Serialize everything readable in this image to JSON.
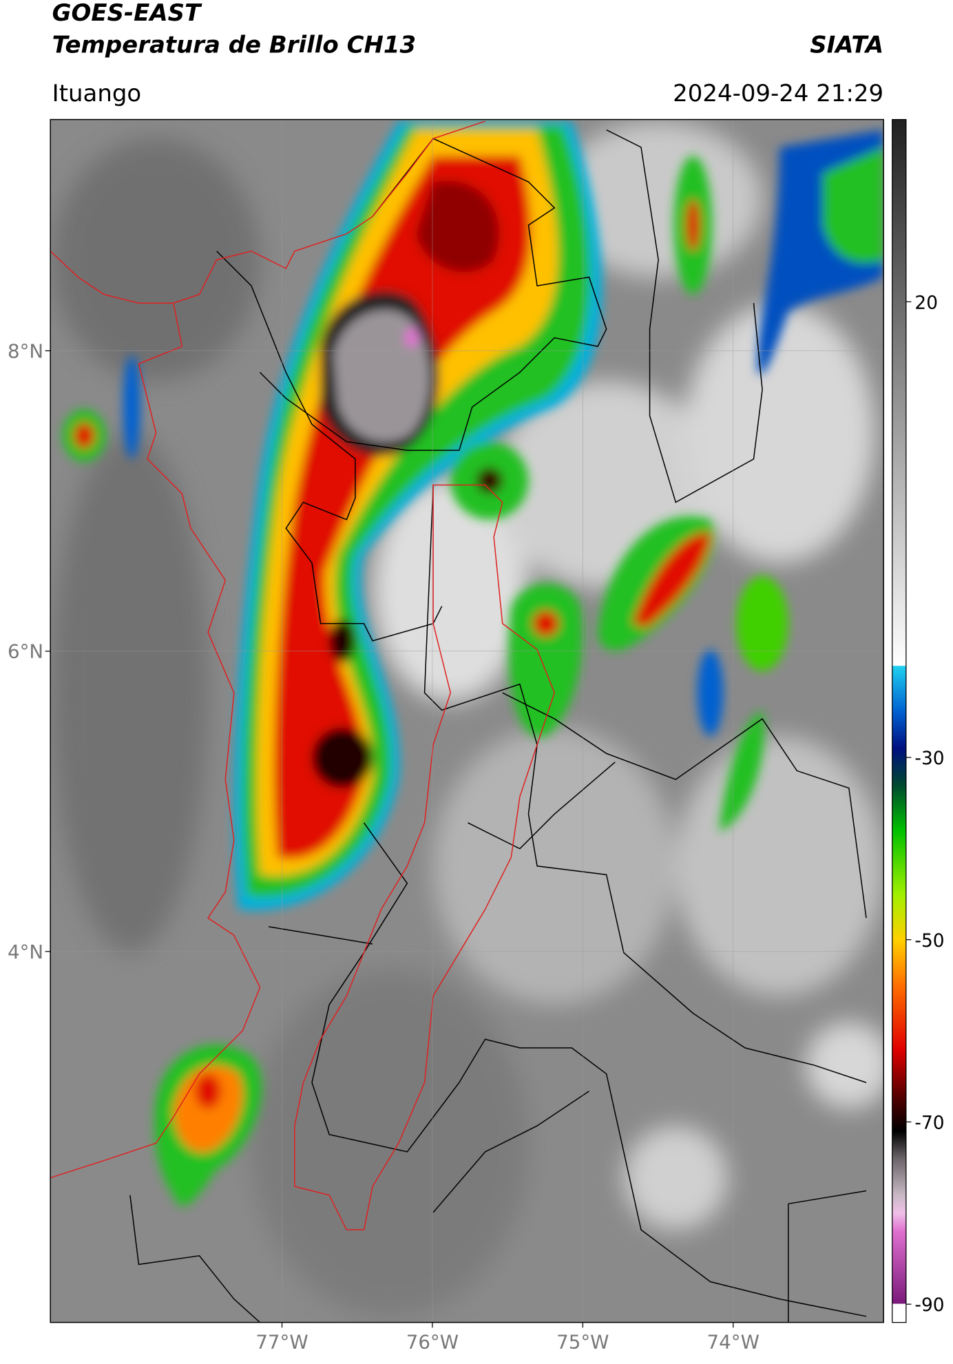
{
  "header": {
    "title": "GOES-EAST",
    "subtitle": "Temperatura de Brillo CH13",
    "source": "SIATA",
    "location": "Ituango",
    "datetime": "2024-09-24 21:29"
  },
  "map": {
    "xlim": [
      -78.54,
      -73.0
    ],
    "ylim": [
      1.53,
      9.54
    ],
    "xticks": [
      {
        "value": -77,
        "label": "77°W"
      },
      {
        "value": -76,
        "label": "76°W"
      },
      {
        "value": -75,
        "label": "75°W"
      },
      {
        "value": -74,
        "label": "74°W"
      }
    ],
    "yticks": [
      {
        "value": 8,
        "label": "8°N"
      },
      {
        "value": 6,
        "label": "6°N"
      },
      {
        "value": 4,
        "label": "4°N"
      }
    ],
    "grid": true
  },
  "colorbar": {
    "range": [
      -92,
      40
    ],
    "ticks": [
      20,
      -30,
      -50,
      -70,
      -90
    ],
    "colormap": [
      {
        "value": -92,
        "color": "#ffffff"
      },
      {
        "value": -90,
        "color": "#ffffff"
      },
      {
        "value": -89.9,
        "color": "#7a1a7a"
      },
      {
        "value": -82,
        "color": "#e070d0"
      },
      {
        "value": -80,
        "color": "#f0c0e8"
      },
      {
        "value": -78,
        "color": "#c8b8c4"
      },
      {
        "value": -74,
        "color": "#6a6468"
      },
      {
        "value": -71,
        "color": "#000000"
      },
      {
        "value": -67,
        "color": "#5a0000"
      },
      {
        "value": -62,
        "color": "#e00000"
      },
      {
        "value": -55,
        "color": "#ff7000"
      },
      {
        "value": -50,
        "color": "#ffd000"
      },
      {
        "value": -45,
        "color": "#a0f000"
      },
      {
        "value": -38,
        "color": "#00c000"
      },
      {
        "value": -33,
        "color": "#004830"
      },
      {
        "value": -29,
        "color": "#001080"
      },
      {
        "value": -25,
        "color": "#0060d0"
      },
      {
        "value": -20,
        "color": "#20d0f0"
      },
      {
        "value": -19.9,
        "color": "#ffffff"
      },
      {
        "value": 40,
        "color": "#202020"
      }
    ]
  }
}
